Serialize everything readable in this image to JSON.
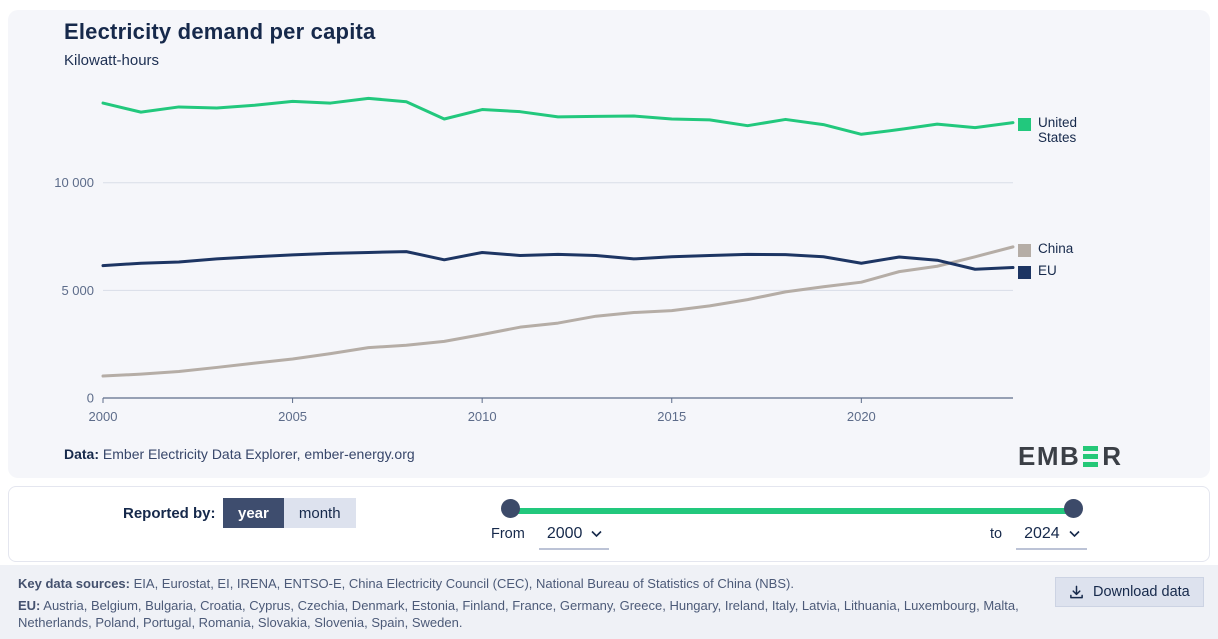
{
  "header": {
    "title": "Electricity demand per capita",
    "subtitle": "Kilowatt-hours"
  },
  "chart_data": {
    "type": "line",
    "title": "Electricity demand per capita",
    "ylabel": "Kilowatt-hours",
    "x": [
      2000,
      2001,
      2002,
      2003,
      2004,
      2005,
      2006,
      2007,
      2008,
      2009,
      2010,
      2011,
      2012,
      2013,
      2014,
      2015,
      2016,
      2017,
      2018,
      2019,
      2020,
      2021,
      2022,
      2023,
      2024
    ],
    "series": [
      {
        "name": "United States",
        "color": "#22c87d",
        "values": [
          13700,
          13280,
          13520,
          13470,
          13600,
          13780,
          13700,
          13920,
          13760,
          12960,
          13400,
          13300,
          13060,
          13080,
          13100,
          12960,
          12920,
          12650,
          12940,
          12700,
          12250,
          12470,
          12720,
          12560,
          12790
        ]
      },
      {
        "name": "China",
        "color": "#b5ada6",
        "values": [
          1020,
          1110,
          1230,
          1420,
          1620,
          1810,
          2060,
          2340,
          2450,
          2630,
          2950,
          3290,
          3480,
          3800,
          3970,
          4060,
          4280,
          4570,
          4930,
          5170,
          5380,
          5870,
          6120,
          6560,
          7020
        ]
      },
      {
        "name": "EU",
        "color": "#1d3563",
        "values": [
          6150,
          6260,
          6320,
          6460,
          6560,
          6650,
          6720,
          6760,
          6800,
          6420,
          6760,
          6620,
          6670,
          6620,
          6460,
          6560,
          6620,
          6670,
          6660,
          6560,
          6260,
          6550,
          6400,
          5980,
          6060
        ]
      }
    ],
    "xlim": [
      2000,
      2024
    ],
    "ylim": [
      0,
      14400
    ],
    "xticks": [
      2000,
      2005,
      2010,
      2015,
      2020
    ],
    "yticks": [
      0,
      5000,
      10000
    ],
    "ytick_labels": [
      "0",
      "5 000",
      "10 000"
    ],
    "grid": "horizontal",
    "legend_position": "right"
  },
  "attribution": {
    "label": "Data:",
    "text": " Ember Electricity Data Explorer, ember-energy.org"
  },
  "logo": {
    "left": "EMB",
    "right": "R"
  },
  "controls": {
    "reported_by_label": "Reported by:",
    "toggle": {
      "options": [
        "year",
        "month"
      ],
      "selected": "year"
    },
    "range": {
      "from_label": "From",
      "from_value": "2000",
      "to_label": "to",
      "to_value": "2024"
    }
  },
  "footer": {
    "sources_label": "Key data sources:",
    "sources_text": " EIA, Eurostat, EI, IRENA, ENTSO-E, China Electricity Council (CEC), National Bureau of Statistics of China (NBS).",
    "eu_label": "EU:",
    "eu_text": " Austria, Belgium, Bulgaria, Croatia, Cyprus, Czechia, Denmark, Estonia, Finland, France, Germany, Greece, Hungary, Ireland, Italy, Latvia, Lithuania, Luxembourg, Malta, Netherlands, Poland, Portugal, Romania, Slovakia, Slovenia, Spain, Sweden.",
    "download_button": "Download data"
  }
}
